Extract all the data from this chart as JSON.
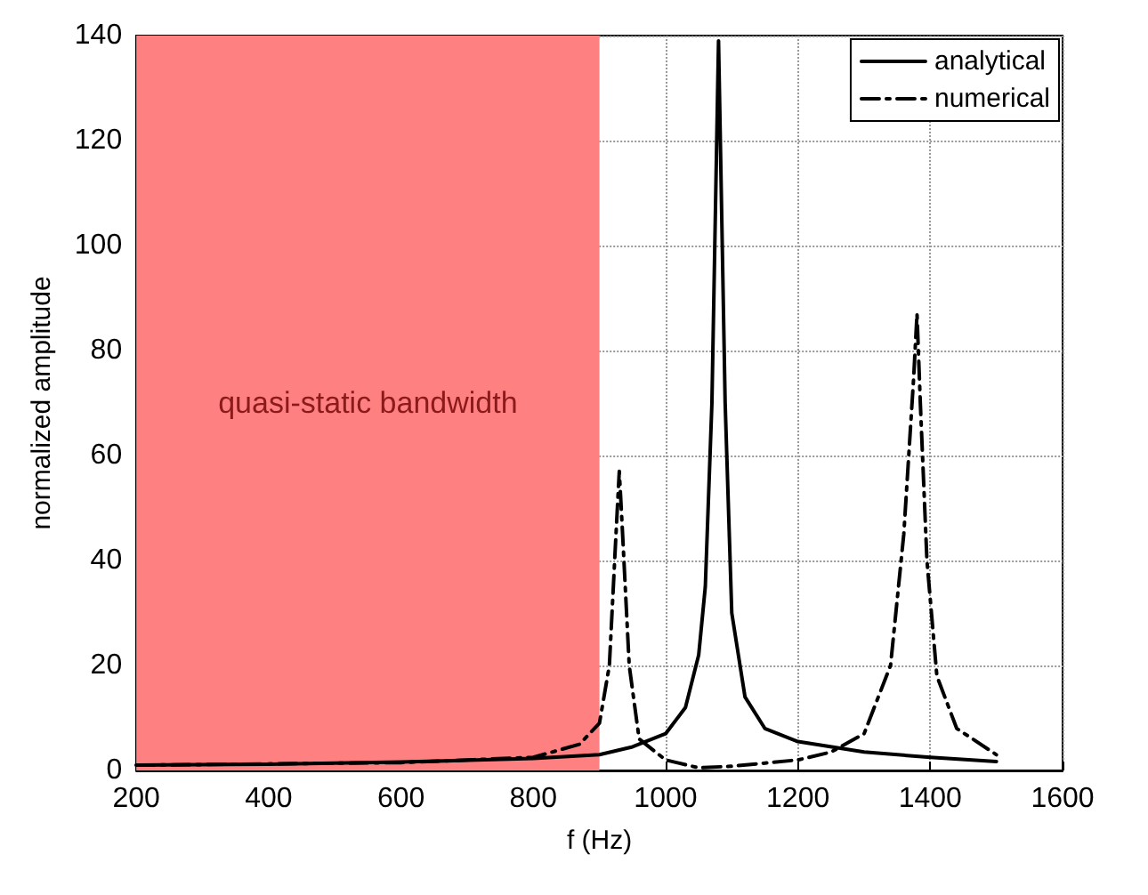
{
  "chart_data": {
    "type": "line",
    "xlabel": "f (Hz)",
    "ylabel": "normalized amplitude",
    "xlim": [
      200,
      1600
    ],
    "xticks": [
      200,
      400,
      600,
      800,
      1000,
      1200,
      1400,
      1600
    ],
    "ylim": [
      0,
      140
    ],
    "yticks": [
      0,
      20,
      40,
      60,
      80,
      100,
      120,
      140
    ],
    "grid": true,
    "legend": "top right",
    "marker": "none",
    "bands": [
      {
        "axis": "x",
        "from": 200,
        "to": 900,
        "label": "quasi-static bandwidth",
        "color": "#ff8080"
      }
    ],
    "series": [
      {
        "name": "analytical",
        "color": "#000000",
        "line_style": "solid",
        "x": [
          200,
          400,
          600,
          800,
          900,
          950,
          1000,
          1030,
          1050,
          1060,
          1070,
          1080,
          1090,
          1100,
          1120,
          1150,
          1200,
          1300,
          1400,
          1500
        ],
        "values": [
          1,
          1.2,
          1.6,
          2.3,
          3,
          4.5,
          7,
          12,
          22,
          35,
          70,
          139,
          70,
          30,
          14,
          8,
          5.5,
          3.5,
          2.5,
          1.7
        ]
      },
      {
        "name": "numerical",
        "color": "#000000",
        "line_style": "dashed",
        "x": [
          200,
          600,
          800,
          870,
          900,
          915,
          925,
          930,
          935,
          945,
          960,
          1000,
          1050,
          1100,
          1200,
          1250,
          1300,
          1340,
          1360,
          1375,
          1380,
          1385,
          1395,
          1410,
          1440,
          1500
        ],
        "values": [
          1,
          1.5,
          2.5,
          5,
          9,
          20,
          45,
          57,
          45,
          20,
          6,
          2,
          0.5,
          0.8,
          2,
          3.5,
          7,
          20,
          45,
          75,
          87,
          70,
          40,
          18,
          8,
          3
        ]
      }
    ]
  }
}
